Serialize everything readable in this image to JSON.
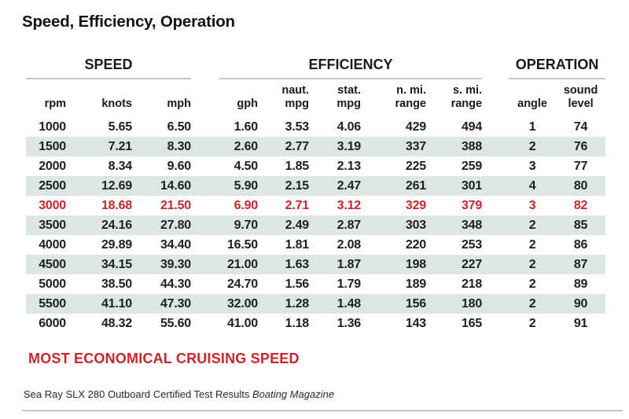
{
  "title": "Speed, Efficiency, Operation",
  "chart_data": {
    "type": "table",
    "title": "Speed, Efficiency, Operation",
    "groups": [
      {
        "label": "SPEED",
        "span": 3
      },
      {
        "label": "EFFICIENCY",
        "span": 5
      },
      {
        "label": "OPERATION",
        "span": 2
      }
    ],
    "columns": [
      "rpm",
      "knots",
      "mph",
      "gph",
      "naut.\nmpg",
      "stat.\nmpg",
      "n. mi.\nrange",
      "s. mi.\nrange",
      "angle",
      "sound\nlevel"
    ],
    "column_keys": [
      "rpm",
      "knots",
      "mph",
      "gph",
      "naut-mpg",
      "stat-mpg",
      "n-mi-range",
      "s-mi-range",
      "angle",
      "sound-level"
    ],
    "rows": [
      [
        "1000",
        "5.65",
        "6.50",
        "1.60",
        "3.53",
        "4.06",
        "429",
        "494",
        "1",
        "74"
      ],
      [
        "1500",
        "7.21",
        "8.30",
        "2.60",
        "2.77",
        "3.19",
        "337",
        "388",
        "2",
        "76"
      ],
      [
        "2000",
        "8.34",
        "9.60",
        "4.50",
        "1.85",
        "2.13",
        "225",
        "259",
        "3",
        "77"
      ],
      [
        "2500",
        "12.69",
        "14.60",
        "5.90",
        "2.15",
        "2.47",
        "261",
        "301",
        "4",
        "80"
      ],
      [
        "3000",
        "18.68",
        "21.50",
        "6.90",
        "2.71",
        "3.12",
        "329",
        "379",
        "3",
        "82"
      ],
      [
        "3500",
        "24.16",
        "27.80",
        "9.70",
        "2.49",
        "2.87",
        "303",
        "348",
        "2",
        "85"
      ],
      [
        "4000",
        "29.89",
        "34.40",
        "16.50",
        "1.81",
        "2.08",
        "220",
        "253",
        "2",
        "86"
      ],
      [
        "4500",
        "34.15",
        "39.30",
        "21.00",
        "1.63",
        "1.87",
        "198",
        "227",
        "2",
        "87"
      ],
      [
        "5000",
        "38.50",
        "44.30",
        "24.70",
        "1.56",
        "1.79",
        "189",
        "218",
        "2",
        "89"
      ],
      [
        "5500",
        "41.10",
        "47.30",
        "32.00",
        "1.28",
        "1.48",
        "156",
        "180",
        "2",
        "90"
      ],
      [
        "6000",
        "48.32",
        "55.60",
        "41.00",
        "1.18",
        "1.36",
        "143",
        "165",
        "2",
        "91"
      ]
    ],
    "highlight_row_index": 4
  },
  "note": "MOST ECONOMICAL CRUISING SPEED",
  "source": {
    "text": "Sea Ray SLX 280 Outboard Certified Test Results",
    "publication": "Boating Magazine"
  },
  "colors": {
    "accent_red": "#c8252c",
    "row_shade": "#dce7e3",
    "text": "#1e1e1e"
  }
}
